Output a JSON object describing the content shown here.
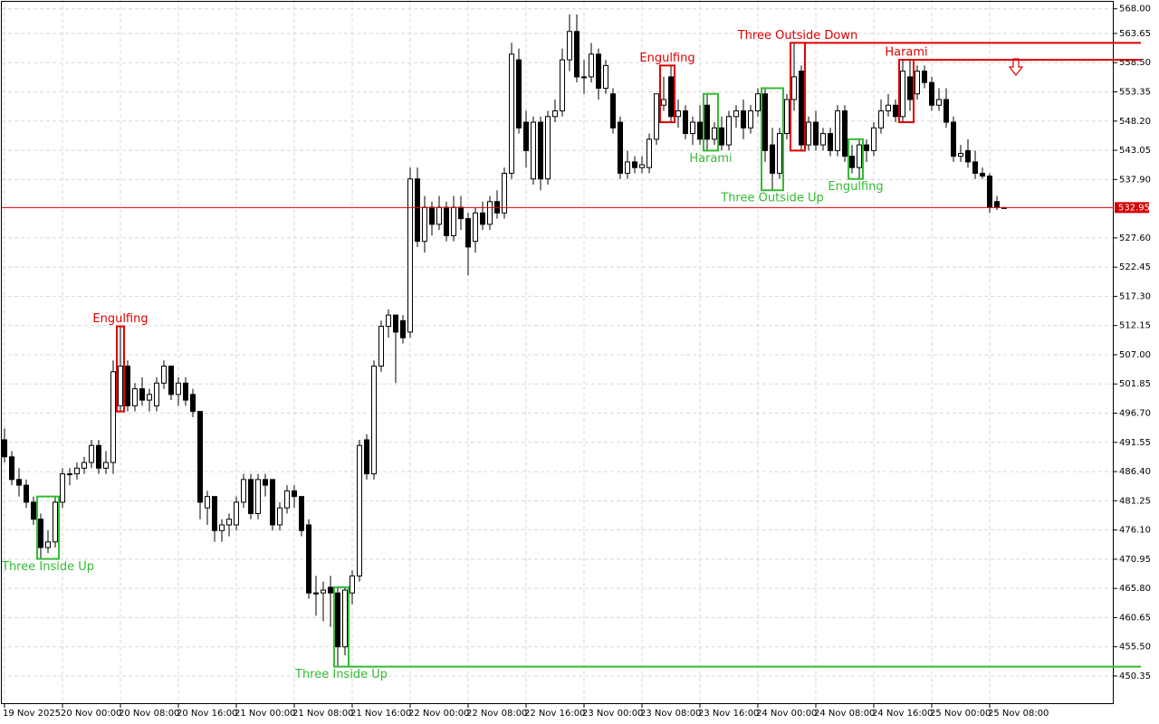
{
  "chart_data": {
    "type": "candlestick",
    "categories": [
      "19 Nov 2025",
      null,
      null,
      null,
      null,
      null,
      null,
      null,
      "20 Nov 00:00",
      null,
      null,
      null,
      null,
      null,
      null,
      null,
      "20 Nov 08:00",
      null,
      null,
      null,
      null,
      null,
      null,
      null,
      "20 Nov 16:00",
      null,
      null,
      null,
      null,
      null,
      null,
      null,
      "21 Nov 00:00",
      null,
      null,
      null,
      null,
      null,
      null,
      null,
      "21 Nov 08:00",
      null,
      null,
      null,
      null,
      null,
      null,
      null,
      "21 Nov 16:00",
      null,
      null,
      null,
      null,
      null,
      null,
      null,
      "22 Nov 00:00",
      null,
      null,
      null,
      null,
      null,
      null,
      null,
      "22 Nov 08:00",
      null,
      null,
      null,
      null,
      null,
      null,
      null,
      "22 Nov 16:00",
      null,
      null,
      null,
      null,
      null,
      null,
      null,
      "23 Nov 00:00",
      null,
      null,
      null,
      null,
      null,
      null,
      null,
      "23 Nov 08:00",
      null,
      null,
      null,
      null,
      null,
      null,
      null,
      "23 Nov 16:00",
      null,
      null,
      null,
      null,
      null,
      null,
      null,
      "24 Nov 00:00",
      null,
      null,
      null,
      null,
      null,
      null,
      null,
      "24 Nov 08:00",
      null,
      null,
      null,
      null,
      null,
      null,
      null,
      "24 Nov 16:00",
      null,
      null,
      null,
      null,
      null,
      null,
      null,
      "25 Nov 00:00",
      null,
      null,
      null,
      null,
      null,
      null,
      null,
      "25 Nov 08:00",
      null,
      null
    ],
    "open": [
      492,
      489,
      485,
      484,
      481,
      478,
      473,
      474,
      481,
      486,
      486,
      487,
      488,
      491,
      487,
      488,
      498,
      505,
      498,
      501,
      499,
      498,
      502,
      505,
      500,
      502,
      500,
      497,
      480,
      482,
      476,
      477,
      477,
      481,
      485,
      479,
      485,
      485,
      477,
      480,
      483,
      482,
      477,
      465,
      465,
      466,
      465,
      455.5,
      465,
      468,
      492,
      486,
      505,
      512,
      514,
      513,
      511,
      538,
      527,
      533,
      530,
      533,
      528,
      533,
      531,
      527,
      532,
      530,
      534,
      532,
      539,
      559,
      548,
      538,
      548,
      538,
      549,
      550,
      559,
      564,
      556,
      556,
      560,
      554,
      553,
      548,
      539,
      541,
      540,
      540,
      545,
      551,
      556,
      549,
      550,
      546,
      548,
      551,
      545,
      547,
      544,
      549,
      550,
      547,
      550,
      553,
      544,
      539,
      546,
      552,
      557,
      544,
      548,
      544,
      546,
      543,
      550,
      542,
      540,
      544,
      543,
      547,
      550,
      551,
      549,
      556,
      553,
      557,
      555,
      551,
      552,
      548,
      542,
      543,
      541,
      539,
      538.5,
      534,
      532.95
    ],
    "high": [
      494,
      490,
      487,
      485,
      482,
      479,
      476,
      482,
      487,
      487,
      488,
      489,
      492,
      492,
      490,
      506,
      512,
      506,
      502,
      503,
      501,
      503,
      506,
      505,
      503,
      503,
      501,
      497,
      483,
      482,
      478,
      479,
      482,
      486,
      486,
      486,
      486,
      485,
      481,
      484,
      484,
      482,
      478,
      468,
      467,
      468,
      466,
      466,
      469,
      492,
      493,
      506,
      513,
      515,
      514,
      514,
      540,
      540,
      535,
      534,
      535,
      534,
      535,
      535,
      532,
      533,
      534,
      535,
      536,
      540,
      562,
      561,
      550,
      549,
      549,
      550,
      552,
      561,
      567,
      567,
      559,
      562,
      561,
      559,
      554,
      549,
      543,
      542,
      542,
      546,
      553,
      556,
      558,
      552,
      551,
      549,
      551,
      553,
      548,
      549,
      550,
      551,
      552,
      551,
      554,
      554,
      547,
      547,
      553,
      562,
      558,
      549,
      550,
      547,
      547,
      551,
      551,
      544,
      545,
      545,
      548,
      552,
      553,
      552,
      559,
      559,
      558,
      558,
      556,
      554,
      554,
      549,
      544,
      545,
      543,
      540,
      539,
      535,
      533
    ],
    "low": [
      488,
      484,
      482,
      480,
      477,
      471,
      472,
      473,
      480,
      484,
      485,
      486,
      487,
      486,
      486,
      486,
      497,
      497,
      497,
      498,
      497,
      497,
      501,
      499,
      498,
      498,
      496,
      478,
      477,
      474,
      474,
      475,
      476,
      480,
      478,
      478,
      482,
      476,
      476,
      479,
      480,
      475,
      464,
      461,
      460,
      459,
      452,
      454,
      463,
      467,
      485,
      485,
      504,
      510,
      502,
      509,
      510,
      526,
      525,
      528,
      529,
      527,
      527,
      529,
      521,
      525,
      529,
      529,
      531,
      531,
      538,
      546,
      540,
      537,
      536,
      537,
      548,
      549,
      557,
      555,
      553,
      555,
      552,
      553,
      546,
      538,
      538,
      539,
      539,
      539,
      544,
      550,
      548,
      547,
      545,
      544,
      544,
      543,
      544,
      543,
      543,
      547,
      545,
      546,
      549,
      541,
      536,
      538,
      545,
      550,
      543,
      543,
      543,
      543,
      542,
      542,
      541,
      539,
      538,
      541,
      542,
      546,
      549,
      548,
      548,
      550,
      552,
      554,
      550,
      550,
      547,
      541,
      541,
      540,
      538,
      538,
      532,
      532.5,
      532.9
    ],
    "close": [
      489,
      485,
      484,
      481,
      478,
      473,
      474,
      481,
      486,
      486,
      487,
      488,
      491,
      487,
      488,
      504,
      505,
      498,
      501,
      499,
      500,
      502,
      505,
      500,
      502,
      499,
      497,
      481,
      482,
      476,
      477,
      478,
      481,
      485,
      479,
      485,
      484,
      477,
      480,
      483,
      482,
      476,
      465,
      465,
      465.5,
      465,
      455.5,
      465.5,
      468,
      491,
      486,
      505,
      512,
      514,
      511,
      510,
      538,
      527,
      533,
      530,
      533,
      528,
      533,
      531,
      526,
      532,
      530,
      534,
      532,
      539,
      560,
      547,
      543,
      548,
      538,
      549,
      550,
      559,
      564,
      556,
      556,
      560,
      554,
      558,
      547,
      539,
      541,
      540,
      540.5,
      545,
      553,
      552,
      549,
      550,
      546,
      548,
      545,
      545,
      547,
      544,
      549,
      550,
      547,
      550,
      553,
      543,
      539,
      546,
      552,
      556,
      544,
      548,
      544,
      546,
      543,
      550,
      542,
      540,
      544,
      543,
      547,
      550,
      551,
      549,
      557,
      552,
      557,
      555,
      551,
      552,
      548,
      542,
      542.5,
      541,
      539,
      538.5,
      533,
      533,
      532.95
    ],
    "ylim": [
      445.4,
      569.55
    ],
    "yticks": [
      {
        "value": 568,
        "label": "568.00"
      },
      563.65,
      {
        "value": 558.5,
        "label": "558.50"
      },
      553.35,
      {
        "value": 548.2,
        "label": "548.20"
      },
      543.05,
      {
        "value": 537.9,
        "label": "537.90"
      },
      {
        "value": 527.6,
        "label": "527.60"
      },
      522.45,
      {
        "value": 517.3,
        "label": "517.30"
      },
      512.15,
      {
        "value": 507,
        "label": "507.00"
      },
      501.85,
      {
        "value": 496.7,
        "label": "496.70"
      },
      491.55,
      {
        "value": 486.4,
        "label": "486.40"
      },
      481.25,
      {
        "value": 476.1,
        "label": "476.10"
      },
      470.95,
      {
        "value": 465.8,
        "label": "465.80"
      },
      460.65,
      {
        "value": 455.5,
        "label": "455.50"
      },
      450.35
    ],
    "last_price": 532.95,
    "grid": true,
    "bull_color": "#ffffff",
    "bear_color": "#000000",
    "price_line_color": "#d40000",
    "patterns": [
      {
        "label": "Three Inside Up",
        "color": "#33bb33",
        "from": 5,
        "to": 7,
        "side": "below",
        "extend": false
      },
      {
        "label": "Engulfing",
        "color": "#e00000",
        "from": 16,
        "to": 16,
        "side": "above",
        "extend": false
      },
      {
        "label": "Three Inside Up",
        "color": "#33bb33",
        "from": 46,
        "to": 47,
        "side": "below",
        "extend": true
      },
      {
        "label": "Engulfing",
        "color": "#e00000",
        "from": 91,
        "to": 92,
        "side": "above",
        "extend": false
      },
      {
        "label": "Harami",
        "color": "#33bb33",
        "from": 97,
        "to": 98,
        "side": "below",
        "extend": false
      },
      {
        "label": "Three Outside Up",
        "color": "#33bb33",
        "from": 105,
        "to": 107,
        "side": "below",
        "extend": false
      },
      {
        "label": "Three Outside Down",
        "color": "#e00000",
        "from": 109,
        "to": 110,
        "side": "above",
        "extend": true
      },
      {
        "label": "Engulfing",
        "color": "#33bb33",
        "from": 117,
        "to": 118,
        "side": "below",
        "extend": false
      },
      {
        "label": "Harami",
        "color": "#e00000",
        "from": 124,
        "to": 125,
        "side": "above",
        "extend": true
      }
    ]
  }
}
